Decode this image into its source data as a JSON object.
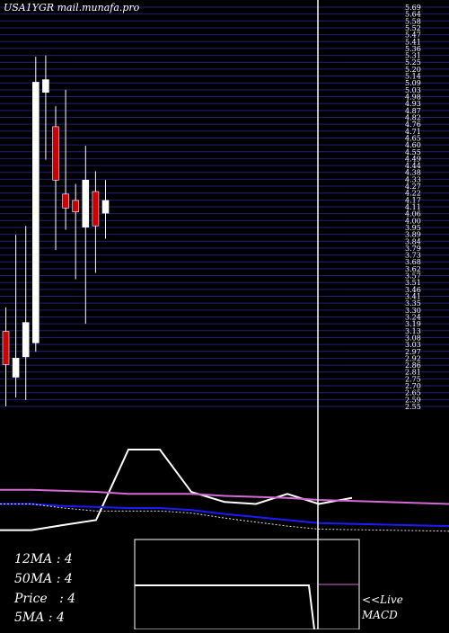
{
  "chart_data": [
    {
      "type": "candlestick",
      "title": "USA1YGR mail.munafa.pro",
      "ylim": [
        2.55,
        5.69
      ],
      "y_ticks": [
        "5.69",
        "5.64",
        "5.58",
        "5.52",
        "5.47",
        "5.41",
        "5.36",
        "5.31",
        "5.25",
        "5.20",
        "5.14",
        "5.09",
        "5.03",
        "4.98",
        "4.93",
        "4.87",
        "4.82",
        "4.76",
        "4.71",
        "4.65",
        "4.60",
        "4.55",
        "4.49",
        "4.44",
        "4.38",
        "4.33",
        "4.27",
        "4.22",
        "4.17",
        "4.11",
        "4.06",
        "4.00",
        "3.95",
        "3.89",
        "3.84",
        "3.79",
        "3.73",
        "3.68",
        "3.62",
        "3.57",
        "3.51",
        "3.46",
        "3.41",
        "3.35",
        "3.30",
        "3.24",
        "3.19",
        "3.13",
        "3.08",
        "3.03",
        "2.97",
        "2.92",
        "2.86",
        "2.81",
        "2.75",
        "2.70",
        "2.65",
        "2.59",
        "2.55"
      ],
      "candles": [
        {
          "open": 3.14,
          "close": 2.88,
          "high": 3.33,
          "low": 2.55,
          "color": "red"
        },
        {
          "open": 2.78,
          "close": 2.93,
          "high": 3.9,
          "low": 2.62,
          "color": "white"
        },
        {
          "open": 2.94,
          "close": 3.21,
          "high": 3.97,
          "low": 2.6,
          "color": "white"
        },
        {
          "open": 3.05,
          "close": 5.1,
          "high": 5.3,
          "low": 2.98,
          "color": "white"
        },
        {
          "open": 5.02,
          "close": 5.12,
          "high": 5.31,
          "low": 4.49,
          "color": "white"
        },
        {
          "open": 4.75,
          "close": 4.33,
          "high": 4.91,
          "low": 3.78,
          "color": "red"
        },
        {
          "open": 4.22,
          "close": 4.11,
          "high": 5.04,
          "low": 3.94,
          "color": "red"
        },
        {
          "open": 4.17,
          "close": 4.08,
          "high": 4.3,
          "low": 3.55,
          "color": "red"
        },
        {
          "open": 3.96,
          "close": 4.33,
          "high": 4.6,
          "low": 3.2,
          "color": "white"
        },
        {
          "open": 4.24,
          "close": 3.97,
          "high": 4.4,
          "low": 3.6,
          "color": "red"
        },
        {
          "open": 4.07,
          "close": 4.17,
          "high": 4.33,
          "low": 3.87,
          "color": "white"
        }
      ],
      "grid": true,
      "grid_color": "#1f1f7a",
      "current_marker_line": "vertical white line at last period"
    },
    {
      "type": "line",
      "panel": "moving averages / indicators",
      "series": [
        {
          "color": "#ffffff",
          "values": [
            0.2,
            0.2,
            0.25,
            0.3,
            1.0,
            1.0,
            0.58,
            0.48,
            0.46,
            0.56,
            0.46,
            0.52
          ]
        },
        {
          "color": "#d46ad4",
          "values": [
            0.6,
            0.6,
            0.59,
            0.58,
            0.56,
            0.56,
            0.56,
            0.54,
            0.53,
            0.52,
            0.5,
            0.46
          ]
        },
        {
          "color": "#1a1aff",
          "values": [
            0.46,
            0.46,
            0.44,
            0.43,
            0.42,
            0.42,
            0.4,
            0.36,
            0.33,
            0.3,
            0.27,
            0.24
          ]
        },
        {
          "color": "#dddddd",
          "dashed": true,
          "values": [
            0.46,
            0.46,
            0.42,
            0.39,
            0.39,
            0.39,
            0.37,
            0.32,
            0.28,
            0.24,
            0.21,
            0.19
          ]
        }
      ]
    }
  ],
  "title": "USA1YGR mail.munafa.pro",
  "legend": {
    "ma12": "12MA : 4",
    "ma50": "50MA : 4",
    "price": "Price   : 4",
    "ma5": "5MA : 4"
  },
  "macd": {
    "live": "<<Live",
    "label": "MACD"
  }
}
